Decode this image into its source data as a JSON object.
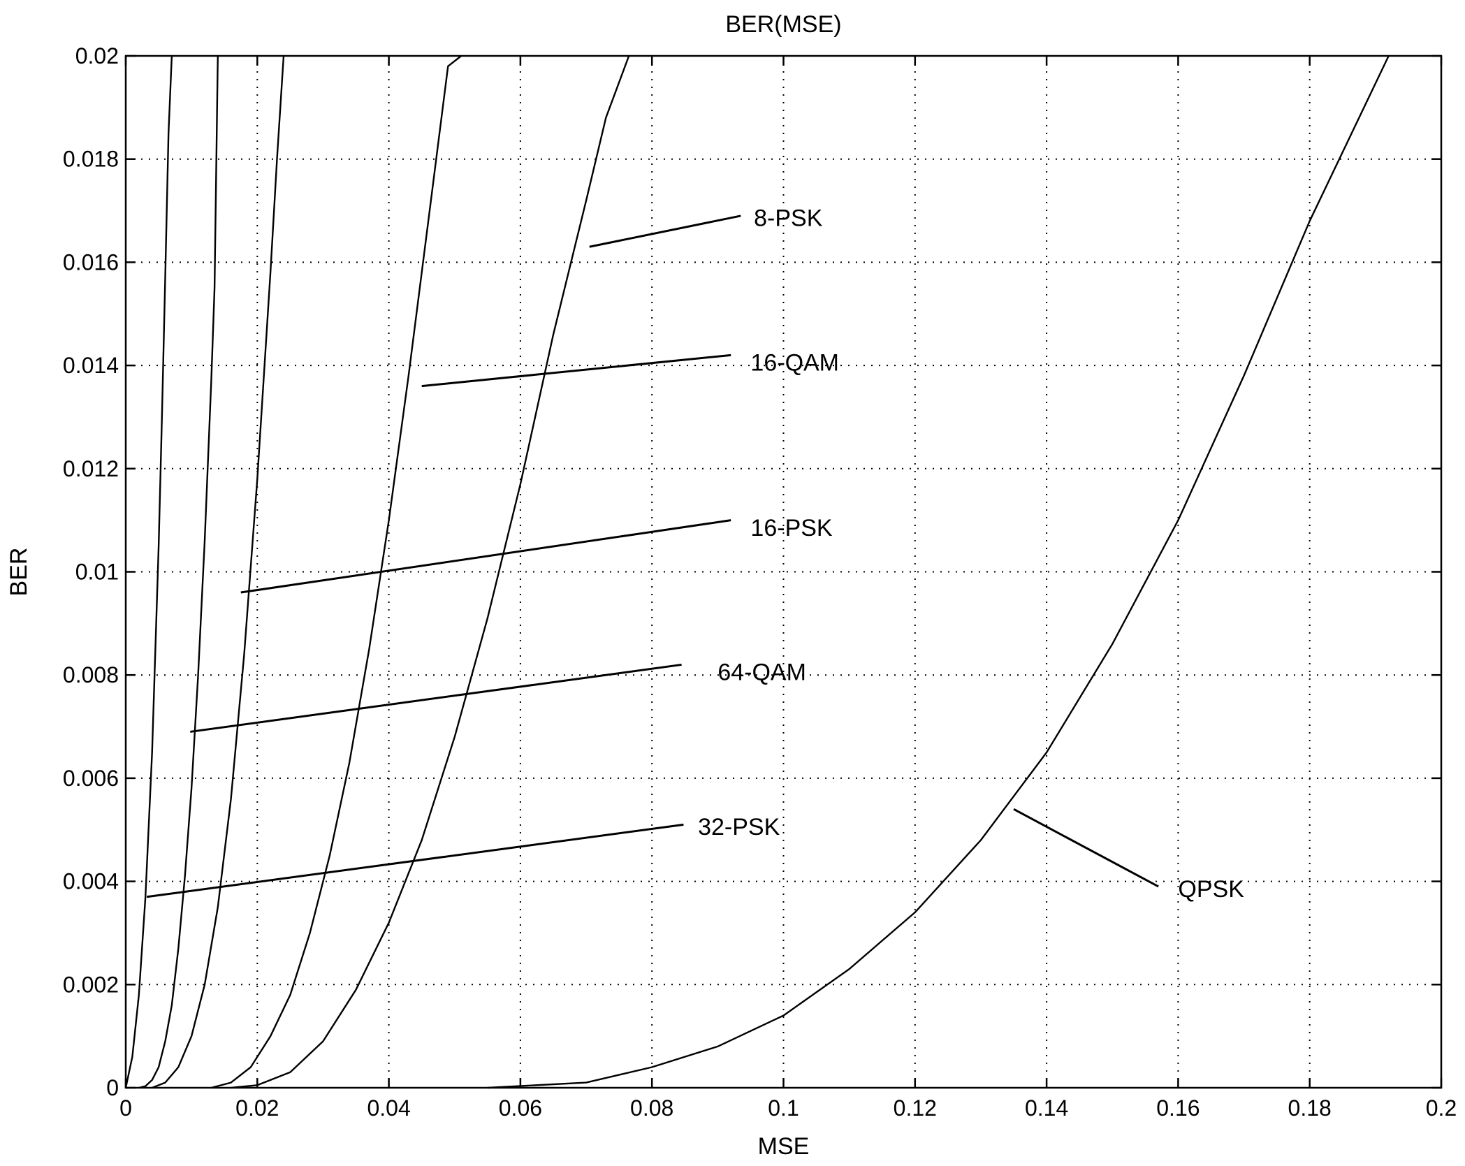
{
  "chart_data": {
    "type": "line",
    "title": "BER(MSE)",
    "xlabel": "MSE",
    "ylabel": "BER",
    "xlim": [
      0,
      0.2
    ],
    "ylim": [
      0,
      0.02
    ],
    "xticks": [
      {
        "value": 0,
        "label": "0"
      },
      {
        "value": 0.02,
        "label": "0.02"
      },
      {
        "value": 0.04,
        "label": "0.04"
      },
      {
        "value": 0.06,
        "label": "0.06"
      },
      {
        "value": 0.08,
        "label": "0.08"
      },
      {
        "value": 0.1,
        "label": "0.1"
      },
      {
        "value": 0.12,
        "label": "0.12"
      },
      {
        "value": 0.14,
        "label": "0.14"
      },
      {
        "value": 0.16,
        "label": "0.16"
      },
      {
        "value": 0.18,
        "label": "0.18"
      },
      {
        "value": 0.2,
        "label": "0.2"
      }
    ],
    "yticks": [
      {
        "value": 0,
        "label": "0"
      },
      {
        "value": 0.002,
        "label": "0.002"
      },
      {
        "value": 0.004,
        "label": "0.004"
      },
      {
        "value": 0.006,
        "label": "0.006"
      },
      {
        "value": 0.008,
        "label": "0.008"
      },
      {
        "value": 0.01,
        "label": "0.01"
      },
      {
        "value": 0.012,
        "label": "0.012"
      },
      {
        "value": 0.014,
        "label": "0.014"
      },
      {
        "value": 0.016,
        "label": "0.016"
      },
      {
        "value": 0.018,
        "label": "0.018"
      },
      {
        "value": 0.02,
        "label": "0.02"
      }
    ],
    "grid": true,
    "series": [
      {
        "x": [
          0,
          0.001,
          0.002,
          0.003,
          0.004,
          0.005,
          0.0055,
          0.006,
          0.0065,
          0.007
        ],
        "y": [
          0,
          0.0006,
          0.0018,
          0.0037,
          0.0065,
          0.0105,
          0.013,
          0.0157,
          0.0185,
          0.02
        ]
      },
      {
        "x": [
          0.002,
          0.003,
          0.004,
          0.005,
          0.006,
          0.007,
          0.008,
          0.009,
          0.01,
          0.011,
          0.012,
          0.013,
          0.0135,
          0.014
        ],
        "y": [
          0,
          3e-05,
          0.00015,
          0.0004,
          0.0009,
          0.0016,
          0.0027,
          0.0041,
          0.0058,
          0.008,
          0.0106,
          0.0137,
          0.0155,
          0.02
        ]
      },
      {
        "x": [
          0.004,
          0.006,
          0.008,
          0.01,
          0.012,
          0.014,
          0.016,
          0.018,
          0.02,
          0.022,
          0.023,
          0.024
        ],
        "y": [
          0,
          0.0001,
          0.0004,
          0.001,
          0.002,
          0.0035,
          0.0056,
          0.0084,
          0.0118,
          0.0158,
          0.018,
          0.02
        ]
      },
      {
        "x": [
          0.013,
          0.016,
          0.019,
          0.022,
          0.025,
          0.028,
          0.031,
          0.034,
          0.037,
          0.04,
          0.043,
          0.046,
          0.049,
          0.051
        ],
        "y": [
          0,
          0.0001,
          0.0004,
          0.001,
          0.0018,
          0.003,
          0.0045,
          0.0063,
          0.0085,
          0.011,
          0.0138,
          0.0168,
          0.0198,
          0.02
        ]
      },
      {
        "x": [
          0.016,
          0.02,
          0.025,
          0.03,
          0.035,
          0.04,
          0.045,
          0.05,
          0.055,
          0.06,
          0.065,
          0.07,
          0.073,
          0.0765
        ],
        "y": [
          0,
          5e-05,
          0.0003,
          0.0009,
          0.0019,
          0.0032,
          0.0048,
          0.0068,
          0.0091,
          0.0117,
          0.0146,
          0.0172,
          0.0188,
          0.02
        ]
      },
      {
        "x": [
          0.055,
          0.07,
          0.08,
          0.09,
          0.1,
          0.11,
          0.12,
          0.13,
          0.14,
          0.15,
          0.16,
          0.17,
          0.18,
          0.192
        ],
        "y": [
          0,
          0.0001,
          0.0004,
          0.0008,
          0.0014,
          0.0023,
          0.0034,
          0.0048,
          0.0065,
          0.0086,
          0.011,
          0.0138,
          0.0168,
          0.02
        ]
      }
    ],
    "annotations": [
      {
        "text": "8-PSK",
        "x": 0.0955,
        "y": 0.0167,
        "from": [
          0.0705,
          0.0163
        ],
        "to": [
          0.0935,
          0.0169
        ]
      },
      {
        "text": "16-QAM",
        "x": 0.095,
        "y": 0.0139,
        "from": [
          0.045,
          0.0136
        ],
        "to": [
          0.092,
          0.0142
        ]
      },
      {
        "text": "16-PSK",
        "x": 0.095,
        "y": 0.0107,
        "from": [
          0.0175,
          0.0096
        ],
        "to": [
          0.092,
          0.011
        ]
      },
      {
        "text": "64-QAM",
        "x": 0.09,
        "y": 0.0079,
        "from": [
          0.0098,
          0.0069
        ],
        "to": [
          0.0845,
          0.0082
        ]
      },
      {
        "text": "32-PSK",
        "x": 0.087,
        "y": 0.0049,
        "from": [
          0.0032,
          0.0037
        ],
        "to": [
          0.0848,
          0.0051
        ]
      },
      {
        "text": "QPSK",
        "x": 0.16,
        "y": 0.0037,
        "from": [
          0.135,
          0.0054
        ],
        "to": [
          0.157,
          0.0039
        ]
      }
    ]
  }
}
